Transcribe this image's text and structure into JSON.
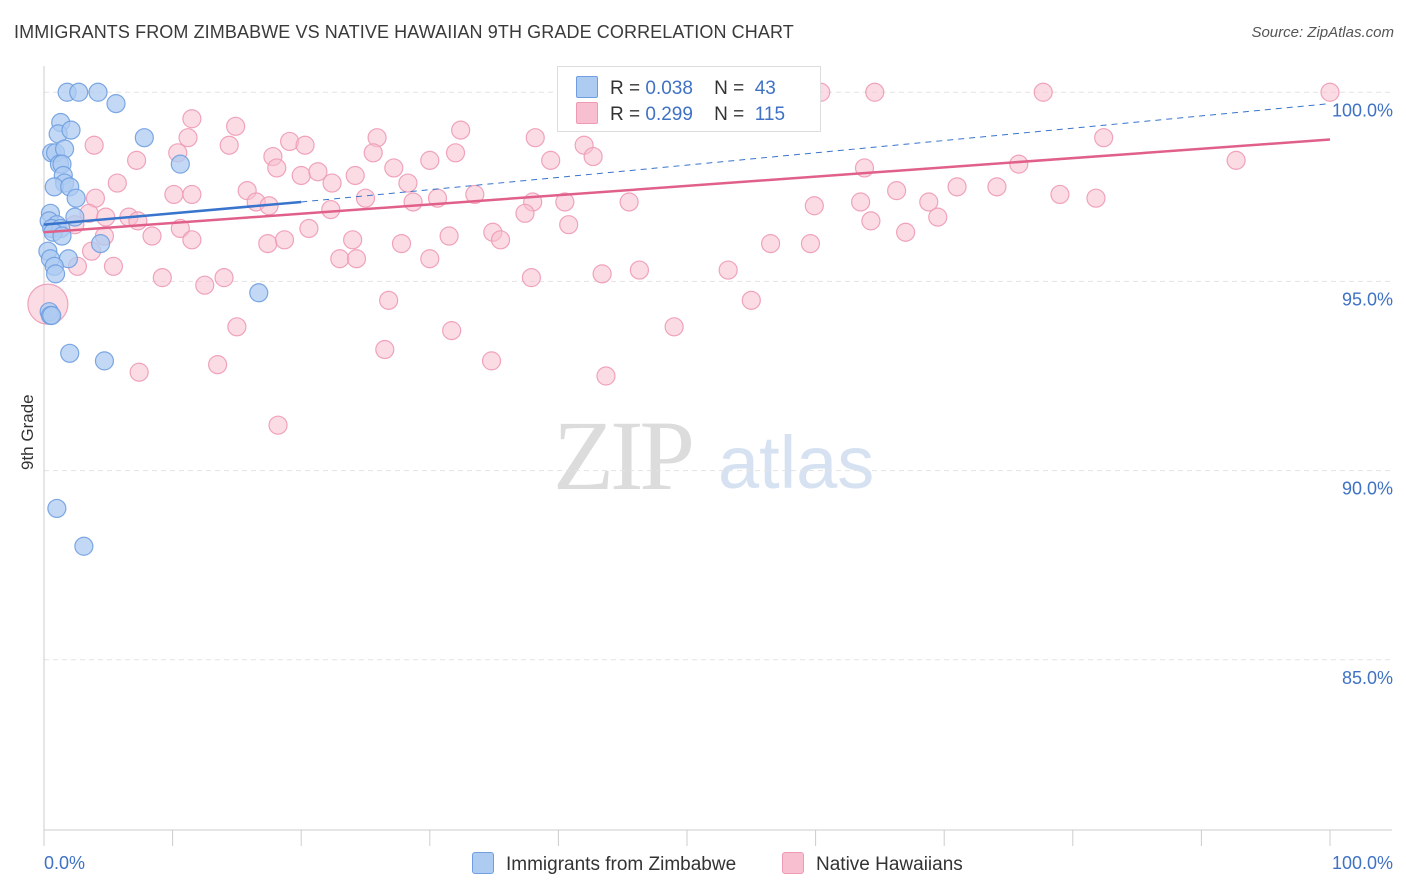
{
  "title": "IMMIGRANTS FROM ZIMBABWE VS NATIVE HAWAIIAN 9TH GRADE CORRELATION CHART",
  "source": "Source: ZipAtlas.com",
  "watermark": {
    "zip": "ZIP",
    "atlas": "atlas"
  },
  "legend": {
    "r_label": "R =",
    "n_label": "N =",
    "rows": [
      {
        "r": "0.038",
        "n": "43",
        "color": "#aecbf2"
      },
      {
        "r": "0.299",
        "n": "115",
        "color": "#f7bfd0"
      }
    ]
  },
  "bottom_legend": [
    {
      "label": "Immigrants from Zimbabwe",
      "color": "#aecbf2"
    },
    {
      "label": "Native Hawaiians",
      "color": "#f7bfd0"
    }
  ],
  "chart_data": {
    "type": "scatter",
    "title": "IMMIGRANTS FROM ZIMBABWE VS NATIVE HAWAIIAN 9TH GRADE CORRELATION CHART",
    "xlabel": "",
    "ylabel": "9th Grade",
    "xlim": [
      0,
      100
    ],
    "ylim": [
      80.5,
      100.8
    ],
    "x_tick_labels": [
      "0.0%",
      "100.0%"
    ],
    "y_ticks": [
      85,
      90,
      95,
      100
    ],
    "y_tick_labels": [
      "85.0%",
      "90.0%",
      "95.0%",
      "100.0%"
    ],
    "grid": true,
    "legend_position": "top-center",
    "series": [
      {
        "name": "Immigrants from Zimbabwe",
        "color": "#6f9fe0",
        "fill": "#aecbf2",
        "line_color": "#3874cc",
        "trend": {
          "x": [
            0,
            20
          ],
          "y": [
            96.5,
            97.1
          ]
        },
        "trend_extension": {
          "x": [
            20,
            100
          ],
          "y": [
            97.1,
            99.7
          ]
        },
        "points": [
          {
            "x": 1.8,
            "y": 100.0
          },
          {
            "x": 2.7,
            "y": 100.0
          },
          {
            "x": 4.2,
            "y": 100.0
          },
          {
            "x": 5.6,
            "y": 99.7
          },
          {
            "x": 1.3,
            "y": 99.2
          },
          {
            "x": 1.1,
            "y": 98.9
          },
          {
            "x": 2.1,
            "y": 99.0
          },
          {
            "x": 7.8,
            "y": 98.8
          },
          {
            "x": 0.6,
            "y": 98.4
          },
          {
            "x": 0.9,
            "y": 98.4
          },
          {
            "x": 1.6,
            "y": 98.5
          },
          {
            "x": 1.2,
            "y": 98.1
          },
          {
            "x": 1.4,
            "y": 98.1
          },
          {
            "x": 10.6,
            "y": 98.1
          },
          {
            "x": 1.5,
            "y": 97.8
          },
          {
            "x": 1.6,
            "y": 97.6
          },
          {
            "x": 0.8,
            "y": 97.5
          },
          {
            "x": 2.0,
            "y": 97.5
          },
          {
            "x": 2.5,
            "y": 97.2
          },
          {
            "x": 0.5,
            "y": 96.8
          },
          {
            "x": 0.4,
            "y": 96.6
          },
          {
            "x": 2.4,
            "y": 96.7
          },
          {
            "x": 1.0,
            "y": 96.5
          },
          {
            "x": 0.6,
            "y": 96.4
          },
          {
            "x": 1.3,
            "y": 96.4
          },
          {
            "x": 0.7,
            "y": 96.3
          },
          {
            "x": 1.4,
            "y": 96.2
          },
          {
            "x": 4.4,
            "y": 96.0
          },
          {
            "x": 0.3,
            "y": 95.8
          },
          {
            "x": 1.9,
            "y": 95.6
          },
          {
            "x": 0.5,
            "y": 95.6
          },
          {
            "x": 0.8,
            "y": 95.4
          },
          {
            "x": 0.9,
            "y": 95.2
          },
          {
            "x": 16.7,
            "y": 94.7
          },
          {
            "x": 0.4,
            "y": 94.2
          },
          {
            "x": 0.5,
            "y": 94.1
          },
          {
            "x": 0.6,
            "y": 94.1
          },
          {
            "x": 2.0,
            "y": 93.1
          },
          {
            "x": 4.7,
            "y": 92.9
          },
          {
            "x": 1.0,
            "y": 89.0
          },
          {
            "x": 3.1,
            "y": 88.0
          }
        ]
      },
      {
        "name": "Native Hawaiians",
        "color": "#ee9ab5",
        "fill": "#f7bfd0",
        "line_color": "#e0608a",
        "trend": {
          "x": [
            0,
            100
          ],
          "y": [
            96.3,
            98.75
          ]
        },
        "points": [
          {
            "x": 41.4,
            "y": 100.0
          },
          {
            "x": 42.6,
            "y": 100.0
          },
          {
            "x": 50.0,
            "y": 100.0
          },
          {
            "x": 55.7,
            "y": 100.0
          },
          {
            "x": 57.5,
            "y": 100.0
          },
          {
            "x": 60.4,
            "y": 100.0
          },
          {
            "x": 64.6,
            "y": 100.0
          },
          {
            "x": 77.7,
            "y": 100.0
          },
          {
            "x": 100.0,
            "y": 100.0
          },
          {
            "x": 11.5,
            "y": 99.3
          },
          {
            "x": 14.9,
            "y": 99.1
          },
          {
            "x": 32.4,
            "y": 99.0
          },
          {
            "x": 3.9,
            "y": 98.6
          },
          {
            "x": 11.2,
            "y": 98.8
          },
          {
            "x": 19.1,
            "y": 98.7
          },
          {
            "x": 25.9,
            "y": 98.8
          },
          {
            "x": 38.2,
            "y": 98.8
          },
          {
            "x": 42.0,
            "y": 98.6
          },
          {
            "x": 82.4,
            "y": 98.8
          },
          {
            "x": 7.2,
            "y": 98.2
          },
          {
            "x": 10.4,
            "y": 98.4
          },
          {
            "x": 14.4,
            "y": 98.6
          },
          {
            "x": 17.8,
            "y": 98.3
          },
          {
            "x": 20.3,
            "y": 98.6
          },
          {
            "x": 25.6,
            "y": 98.4
          },
          {
            "x": 30.0,
            "y": 98.2
          },
          {
            "x": 32.0,
            "y": 98.4
          },
          {
            "x": 39.4,
            "y": 98.2
          },
          {
            "x": 42.7,
            "y": 98.3
          },
          {
            "x": 63.8,
            "y": 98.0
          },
          {
            "x": 75.8,
            "y": 98.1
          },
          {
            "x": 92.7,
            "y": 98.2
          },
          {
            "x": 18.1,
            "y": 98.0
          },
          {
            "x": 20.0,
            "y": 97.8
          },
          {
            "x": 21.3,
            "y": 97.9
          },
          {
            "x": 22.4,
            "y": 97.6
          },
          {
            "x": 24.2,
            "y": 97.8
          },
          {
            "x": 27.2,
            "y": 98.0
          },
          {
            "x": 28.3,
            "y": 97.6
          },
          {
            "x": 4.0,
            "y": 97.2
          },
          {
            "x": 5.7,
            "y": 97.6
          },
          {
            "x": 10.1,
            "y": 97.3
          },
          {
            "x": 11.5,
            "y": 97.3
          },
          {
            "x": 15.8,
            "y": 97.4
          },
          {
            "x": 16.5,
            "y": 97.1
          },
          {
            "x": 17.5,
            "y": 97.0
          },
          {
            "x": 22.3,
            "y": 96.9
          },
          {
            "x": 25.0,
            "y": 97.2
          },
          {
            "x": 28.7,
            "y": 97.1
          },
          {
            "x": 30.6,
            "y": 97.2
          },
          {
            "x": 33.5,
            "y": 97.3
          },
          {
            "x": 38.0,
            "y": 97.1
          },
          {
            "x": 40.5,
            "y": 97.1
          },
          {
            "x": 45.5,
            "y": 97.1
          },
          {
            "x": 59.9,
            "y": 97.0
          },
          {
            "x": 63.5,
            "y": 97.1
          },
          {
            "x": 66.3,
            "y": 97.4
          },
          {
            "x": 68.8,
            "y": 97.1
          },
          {
            "x": 71.0,
            "y": 97.5
          },
          {
            "x": 74.1,
            "y": 97.5
          },
          {
            "x": 79.0,
            "y": 97.3
          },
          {
            "x": 81.8,
            "y": 97.2
          },
          {
            "x": 3.5,
            "y": 96.8
          },
          {
            "x": 4.8,
            "y": 96.7
          },
          {
            "x": 6.6,
            "y": 96.7
          },
          {
            "x": 7.3,
            "y": 96.6
          },
          {
            "x": 8.4,
            "y": 96.2
          },
          {
            "x": 10.6,
            "y": 96.4
          },
          {
            "x": 11.5,
            "y": 96.1
          },
          {
            "x": 17.4,
            "y": 96.0
          },
          {
            "x": 18.7,
            "y": 96.1
          },
          {
            "x": 20.6,
            "y": 96.4
          },
          {
            "x": 24.0,
            "y": 96.1
          },
          {
            "x": 31.5,
            "y": 96.2
          },
          {
            "x": 34.9,
            "y": 96.3
          },
          {
            "x": 37.4,
            "y": 96.8
          },
          {
            "x": 40.8,
            "y": 96.5
          },
          {
            "x": 64.3,
            "y": 96.6
          },
          {
            "x": 67.0,
            "y": 96.3
          },
          {
            "x": 69.5,
            "y": 96.7
          },
          {
            "x": 2.4,
            "y": 96.5
          },
          {
            "x": 4.7,
            "y": 96.2
          },
          {
            "x": 27.8,
            "y": 96.0
          },
          {
            "x": 35.5,
            "y": 96.1
          },
          {
            "x": 56.5,
            "y": 96.0
          },
          {
            "x": 59.6,
            "y": 96.0
          },
          {
            "x": 3.7,
            "y": 95.8
          },
          {
            "x": 5.4,
            "y": 95.4
          },
          {
            "x": 9.2,
            "y": 95.1
          },
          {
            "x": 12.5,
            "y": 94.9
          },
          {
            "x": 14.0,
            "y": 95.1
          },
          {
            "x": 23.0,
            "y": 95.6
          },
          {
            "x": 24.3,
            "y": 95.6
          },
          {
            "x": 30.0,
            "y": 95.6
          },
          {
            "x": 37.9,
            "y": 95.1
          },
          {
            "x": 43.4,
            "y": 95.2
          },
          {
            "x": 46.3,
            "y": 95.3
          },
          {
            "x": 53.2,
            "y": 95.3
          },
          {
            "x": 2.6,
            "y": 95.4
          },
          {
            "x": 26.8,
            "y": 94.5
          },
          {
            "x": 55.0,
            "y": 94.5
          },
          {
            "x": 15.0,
            "y": 93.8
          },
          {
            "x": 31.7,
            "y": 93.7
          },
          {
            "x": 49.0,
            "y": 93.8
          },
          {
            "x": 26.5,
            "y": 93.2
          },
          {
            "x": 34.8,
            "y": 92.9
          },
          {
            "x": 13.5,
            "y": 92.8
          },
          {
            "x": 7.4,
            "y": 92.6
          },
          {
            "x": 43.7,
            "y": 92.5
          },
          {
            "x": 18.2,
            "y": 91.2
          },
          {
            "x": 0.3,
            "y": 94.4
          }
        ]
      }
    ]
  }
}
